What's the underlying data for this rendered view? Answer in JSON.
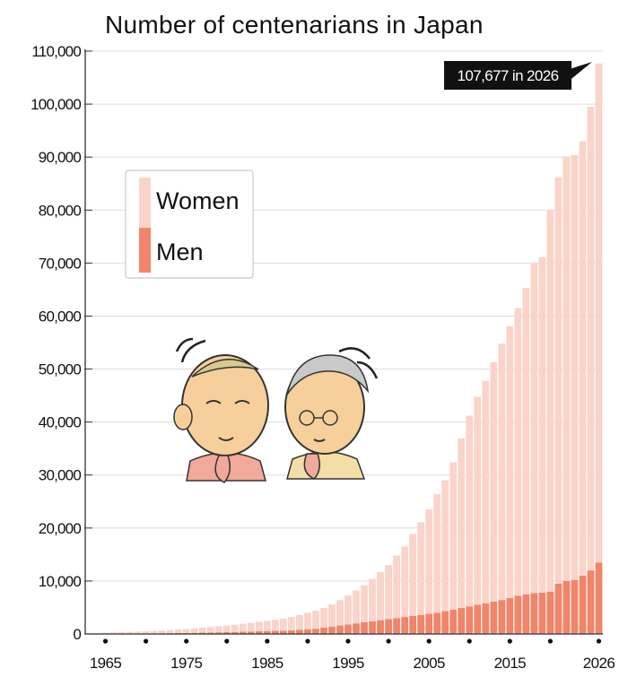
{
  "chart_data": {
    "type": "bar",
    "stacked": true,
    "title": "Number of centenarians in Japan",
    "xlabel": "",
    "ylabel": "",
    "x": [
      1963,
      1964,
      1965,
      1966,
      1967,
      1968,
      1969,
      1970,
      1971,
      1972,
      1973,
      1974,
      1975,
      1976,
      1977,
      1978,
      1979,
      1980,
      1981,
      1982,
      1983,
      1984,
      1985,
      1986,
      1987,
      1988,
      1989,
      1990,
      1991,
      1992,
      1993,
      1994,
      1995,
      1996,
      1997,
      1998,
      1999,
      2000,
      2001,
      2002,
      2003,
      2004,
      2005,
      2006,
      2007,
      2008,
      2009,
      2010,
      2011,
      2012,
      2013,
      2014,
      2015,
      2016,
      2017,
      2018,
      2019,
      2020,
      2021,
      2022,
      2023,
      2024,
      2025,
      2026
    ],
    "series": [
      {
        "name": "Men",
        "color": "#f0856a",
        "values": [
          20,
          30,
          40,
          50,
          60,
          70,
          80,
          90,
          110,
          130,
          150,
          170,
          190,
          220,
          250,
          280,
          310,
          340,
          380,
          420,
          460,
          500,
          540,
          580,
          620,
          700,
          800,
          900,
          1000,
          1200,
          1400,
          1600,
          1800,
          2000,
          2200,
          2400,
          2600,
          2800,
          3000,
          3200,
          3400,
          3600,
          3800,
          4000,
          4300,
          4600,
          4900,
          5200,
          5500,
          5800,
          6100,
          6400,
          6800,
          7200,
          7500,
          7700,
          7800,
          8000,
          9500,
          10000,
          10200,
          11000,
          12000,
          13500
        ]
      },
      {
        "name": "Women",
        "color": "#fad4c9",
        "values": [
          130,
          170,
          210,
          250,
          290,
          330,
          370,
          420,
          480,
          540,
          600,
          680,
          760,
          850,
          950,
          1050,
          1150,
          1250,
          1350,
          1500,
          1650,
          1800,
          1960,
          2100,
          2300,
          2500,
          2800,
          3100,
          3400,
          3700,
          4200,
          4800,
          5500,
          6200,
          7000,
          8000,
          9100,
          10200,
          11800,
          13300,
          15500,
          17500,
          19700,
          22400,
          24700,
          27800,
          32000,
          36000,
          39300,
          42000,
          45200,
          48400,
          51300,
          54300,
          57800,
          62300,
          63300,
          72000,
          76700,
          80000,
          80200,
          82000,
          87500,
          94177
        ]
      }
    ],
    "ylim": [
      0,
      110000
    ],
    "yticks": [
      "0",
      "10,000",
      "20,000",
      "30,000",
      "40,000",
      "50,000",
      "60,000",
      "70,000",
      "80,000",
      "90,000",
      "100,000",
      "110,000"
    ],
    "xticks": [
      "1965",
      "1975",
      "1985",
      "1995",
      "2005",
      "2015",
      "2026"
    ],
    "grid": true,
    "legend": {
      "placement": "upper-left",
      "items": [
        "Women",
        "Men"
      ]
    },
    "annotation": {
      "text": "107,677 in 2026",
      "x": 2026,
      "y": 107677
    }
  }
}
